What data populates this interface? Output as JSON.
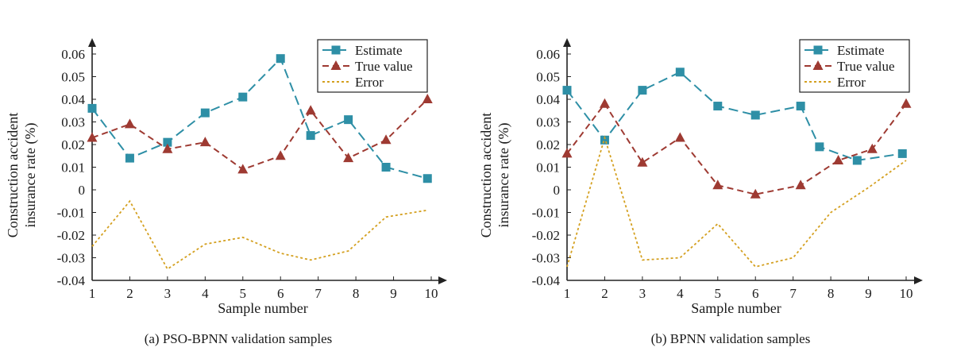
{
  "chart_data": [
    {
      "type": "line",
      "caption": "(a) PSO-BPNN validation samples",
      "xlabel": "Sample number",
      "ylabel": [
        "Construction accident",
        "insurance rate (%)"
      ],
      "ylim": [
        -0.04,
        0.06
      ],
      "xlim": [
        1,
        10
      ],
      "xticks": [
        "1",
        "2",
        "3",
        "4",
        "5",
        "6",
        "7",
        "8",
        "9",
        "10"
      ],
      "yticks": [
        "-0.04",
        "-0.03",
        "-0.02",
        "-0.01",
        "0",
        "0.01",
        "0.02",
        "0.03",
        "0.04",
        "0.05",
        "0.06"
      ],
      "legend_position": "top-right",
      "series": [
        {
          "name": "Estimate",
          "color": "#2e8fa6",
          "marker": "square",
          "style": "long-dash",
          "x": [
            1,
            2,
            3,
            4,
            5,
            6,
            6.8,
            7.8,
            8.8,
            9.9
          ],
          "values": [
            0.036,
            0.014,
            0.021,
            0.034,
            0.041,
            0.058,
            0.024,
            0.031,
            0.01,
            0.005
          ]
        },
        {
          "name": "True value",
          "color": "#9e3a32",
          "marker": "triangle",
          "style": "dash",
          "x": [
            1,
            2,
            3,
            4,
            5,
            6,
            6.8,
            7.8,
            8.8,
            9.9
          ],
          "values": [
            0.023,
            0.029,
            0.018,
            0.021,
            0.009,
            0.015,
            0.035,
            0.014,
            0.022,
            0.04
          ]
        },
        {
          "name": "Error",
          "color": "#d4a020",
          "marker": "none",
          "style": "dot",
          "x": [
            1,
            2,
            3,
            4,
            5,
            6,
            6.8,
            7.8,
            8.8,
            9.9
          ],
          "values": [
            -0.025,
            -0.005,
            -0.035,
            -0.024,
            -0.021,
            -0.028,
            -0.031,
            -0.027,
            -0.012,
            -0.009
          ]
        }
      ]
    },
    {
      "type": "line",
      "caption": "(b) BPNN validation samples",
      "xlabel": "Sample number",
      "ylabel": [
        "Construction accident",
        "insurance rate (%)"
      ],
      "ylim": [
        -0.04,
        0.06
      ],
      "xlim": [
        1,
        10
      ],
      "xticks": [
        "1",
        "2",
        "3",
        "4",
        "5",
        "6",
        "7",
        "8",
        "9",
        "10"
      ],
      "yticks": [
        "-0.04",
        "-0.03",
        "-0.02",
        "-0.01",
        "0",
        "0.01",
        "0.02",
        "0.03",
        "0.04",
        "0.05",
        "0.06"
      ],
      "legend_position": "top-right",
      "series": [
        {
          "name": "Estimate",
          "color": "#2e8fa6",
          "marker": "square",
          "style": "long-dash",
          "x": [
            1,
            2,
            3,
            4,
            5,
            6,
            7.2,
            7.7,
            8.7,
            9.9
          ],
          "values": [
            0.044,
            0.022,
            0.044,
            0.052,
            0.037,
            0.033,
            0.037,
            0.019,
            0.013,
            0.016
          ]
        },
        {
          "name": "True value",
          "color": "#9e3a32",
          "marker": "triangle",
          "style": "dash",
          "x": [
            1,
            2,
            3,
            4,
            5,
            6,
            7.2,
            8.2,
            9.1,
            10
          ],
          "values": [
            0.016,
            0.038,
            0.012,
            0.023,
            0.002,
            -0.002,
            0.002,
            0.013,
            0.018,
            0.038
          ]
        },
        {
          "name": "Error",
          "color": "#d4a020",
          "marker": "none",
          "style": "dot",
          "x": [
            1,
            2,
            3,
            4,
            5,
            6,
            7,
            8,
            9,
            10
          ],
          "values": [
            -0.034,
            0.023,
            -0.031,
            -0.03,
            -0.015,
            -0.034,
            -0.03,
            -0.01,
            0.001,
            0.013
          ]
        }
      ]
    }
  ]
}
